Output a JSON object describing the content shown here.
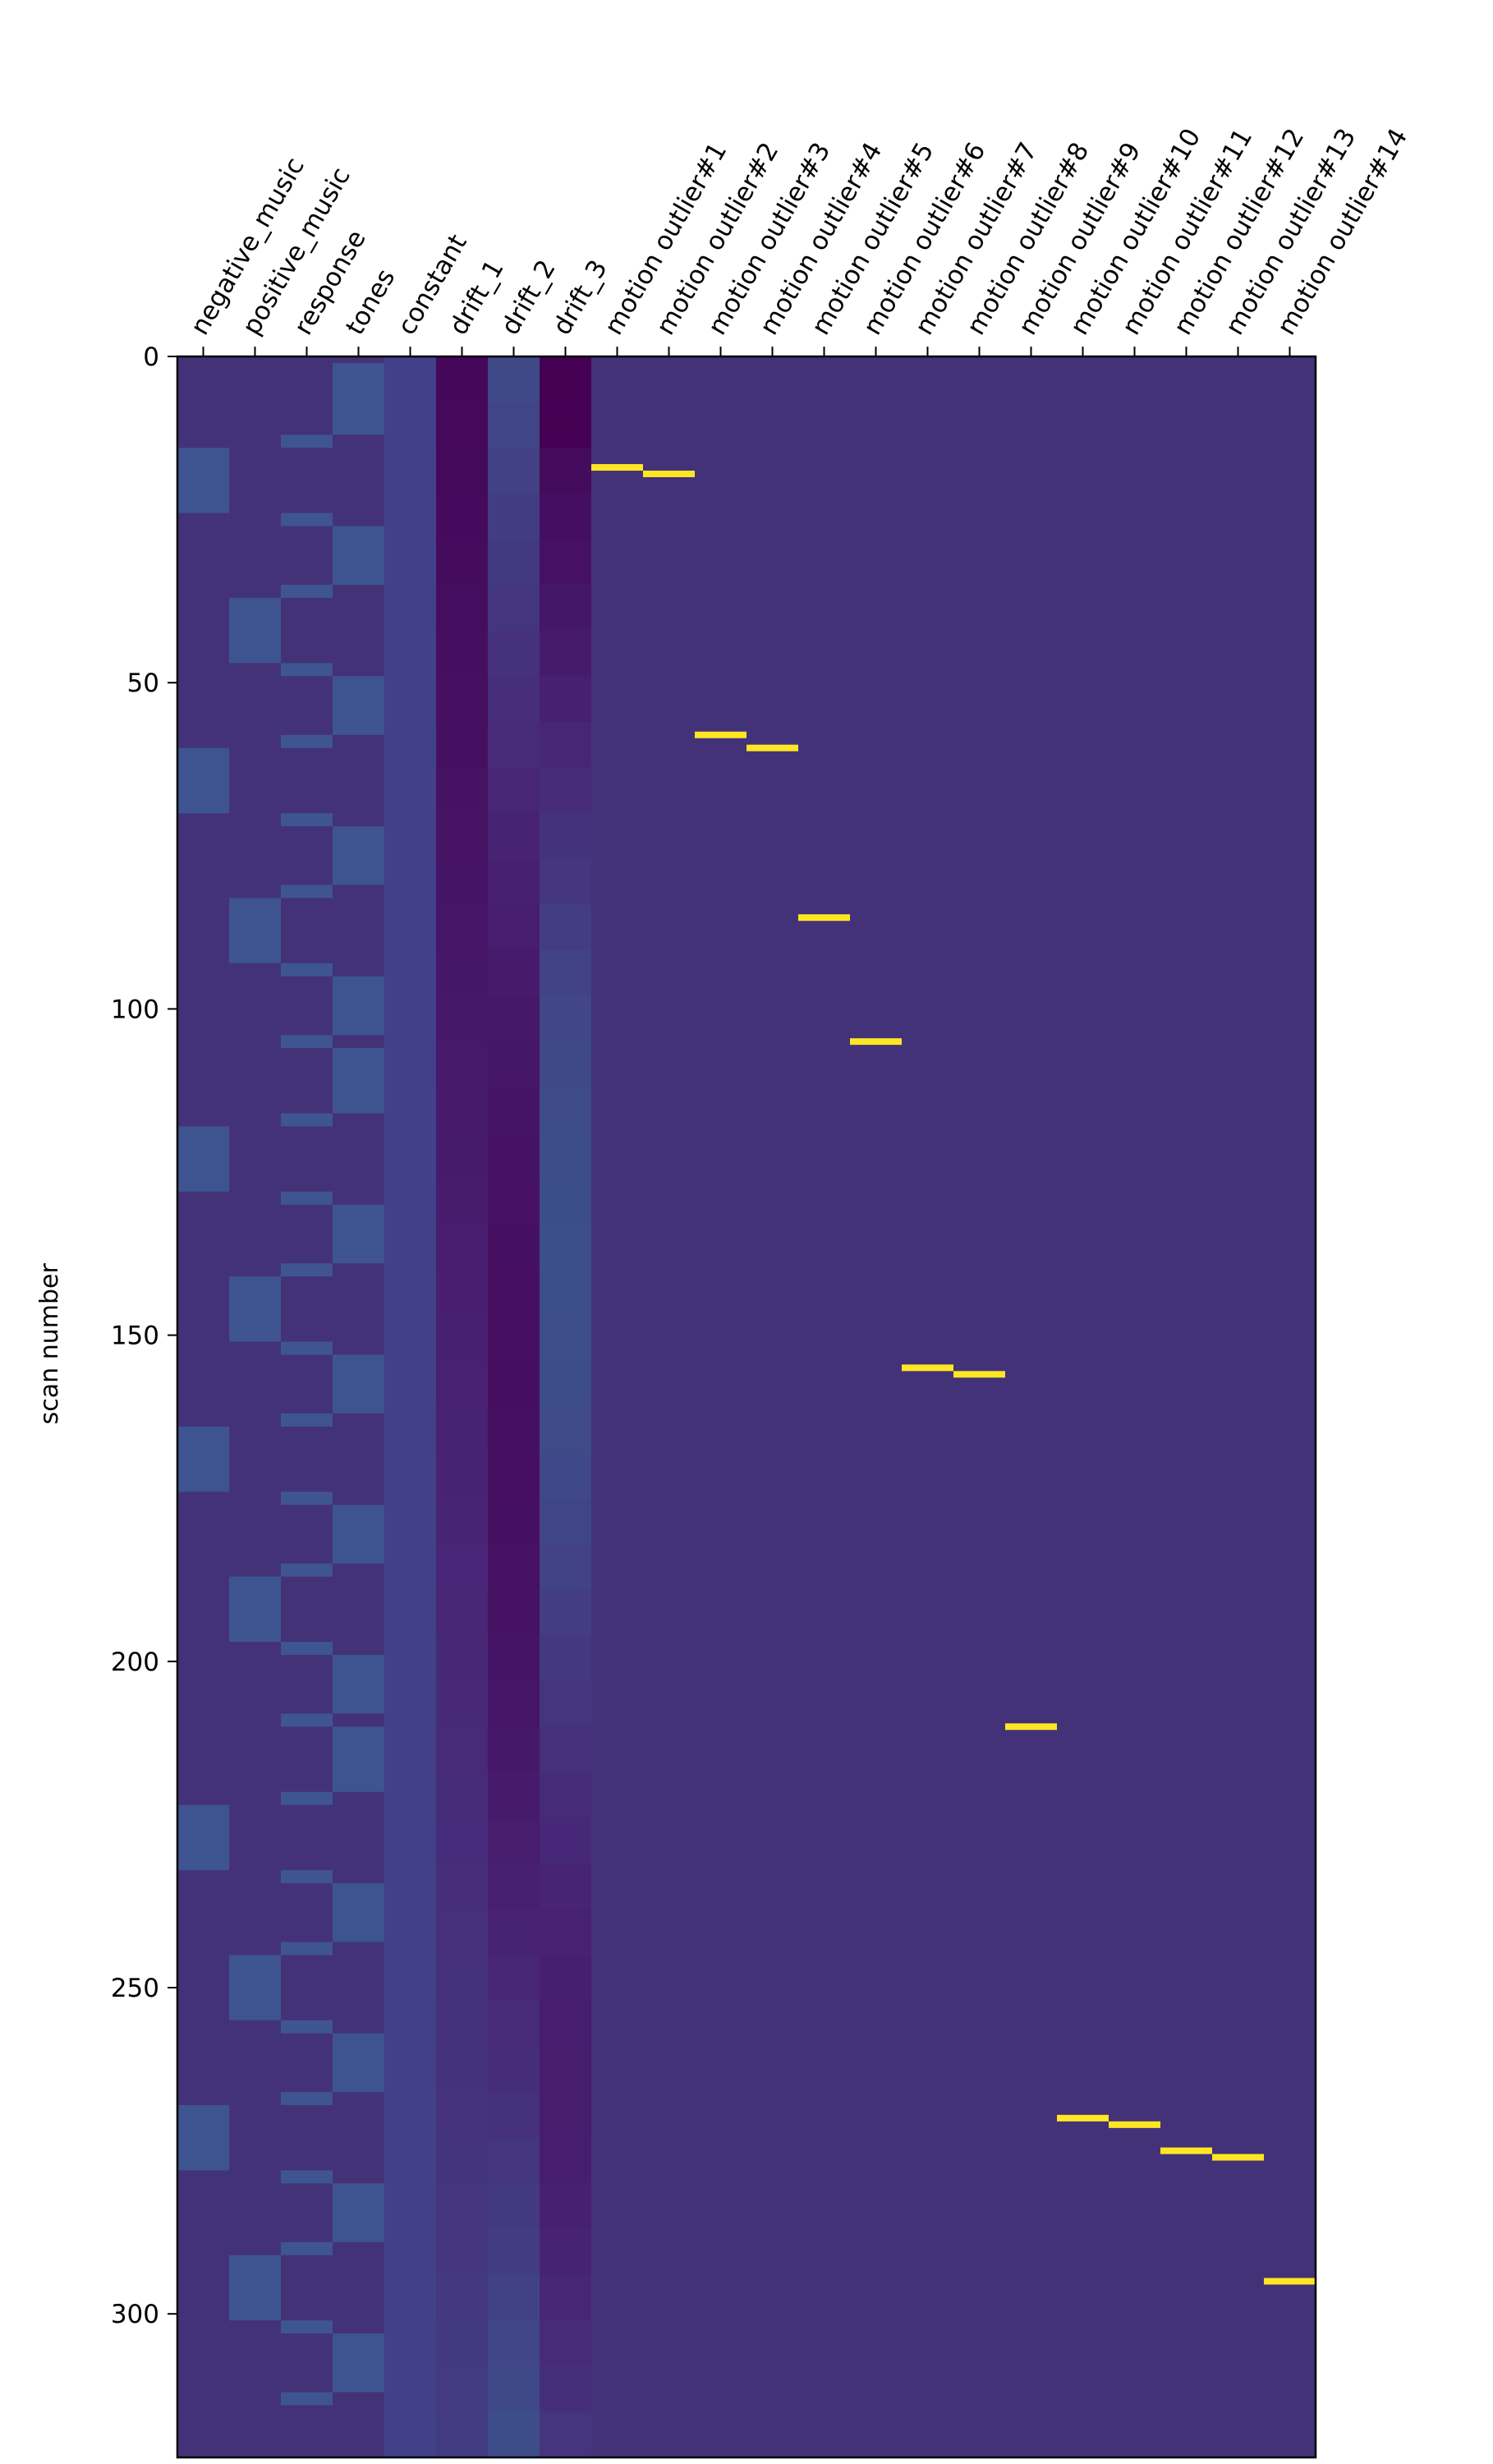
{
  "chart_data": {
    "type": "heatmap",
    "title": "",
    "ylabel": "scan number",
    "xlabel": "",
    "columns": [
      "negative_music",
      "positive_music",
      "response",
      "tones",
      "constant",
      "drift_1",
      "drift_2",
      "drift_3",
      "motion outlier#1",
      "motion outlier#2",
      "motion outlier#3",
      "motion outlier#4",
      "motion outlier#5",
      "motion outlier#6",
      "motion outlier#7",
      "motion outlier#8",
      "motion outlier#9",
      "motion outlier#10",
      "motion outlier#11",
      "motion outlier#12",
      "motion outlier#13",
      "motion outlier#14"
    ],
    "n_scans": 322,
    "yticks": [
      0,
      50,
      100,
      150,
      200,
      250,
      300
    ],
    "ylim": [
      0,
      322
    ],
    "colormap": "viridis",
    "colors": {
      "background": "#ffffff",
      "baseline": "#443278",
      "block_high": "#3d5490",
      "response_high": "#3e5592",
      "constant": "#424088",
      "outlier_spike": "#fde725",
      "axis": "#000000"
    },
    "blocks": {
      "negative_music": [
        [
          14,
          24
        ],
        [
          60,
          70
        ],
        [
          118,
          128
        ],
        [
          164,
          174
        ],
        [
          222,
          232
        ],
        [
          268,
          278
        ]
      ],
      "positive_music": [
        [
          37,
          47
        ],
        [
          83,
          93
        ],
        [
          141,
          151
        ],
        [
          187,
          197
        ],
        [
          245,
          255
        ],
        [
          291,
          301
        ]
      ],
      "response": [
        [
          12,
          14
        ],
        [
          24,
          26
        ],
        [
          35,
          37
        ],
        [
          47,
          49
        ],
        [
          58,
          60
        ],
        [
          70,
          72
        ],
        [
          81,
          83
        ],
        [
          93,
          95
        ],
        [
          104,
          106
        ],
        [
          116,
          118
        ],
        [
          128,
          130
        ],
        [
          139,
          141
        ],
        [
          151,
          153
        ],
        [
          162,
          164
        ],
        [
          174,
          176
        ],
        [
          185,
          187
        ],
        [
          197,
          199
        ],
        [
          208,
          210
        ],
        [
          220,
          222
        ],
        [
          232,
          234
        ],
        [
          243,
          245
        ],
        [
          255,
          257
        ],
        [
          266,
          268
        ],
        [
          278,
          280
        ],
        [
          289,
          291
        ],
        [
          301,
          303
        ],
        [
          312,
          314
        ]
      ],
      "tones": [
        [
          1,
          12
        ],
        [
          26,
          35
        ],
        [
          49,
          58
        ],
        [
          72,
          81
        ],
        [
          95,
          104
        ],
        [
          106,
          116
        ],
        [
          130,
          139
        ],
        [
          153,
          162
        ],
        [
          176,
          185
        ],
        [
          199,
          208
        ],
        [
          210,
          220
        ],
        [
          234,
          243
        ],
        [
          257,
          266
        ],
        [
          280,
          289
        ],
        [
          303,
          312
        ]
      ]
    },
    "drifts": {
      "drift_1": {
        "start": 0.06,
        "end": 0.12
      },
      "drift_2": {
        "start": 0.25,
        "end": 0.28
      },
      "drift_3": {
        "start": 0.29,
        "end": 0.32
      }
    },
    "outliers": [
      17,
      18,
      58,
      60,
      86,
      105,
      155,
      156,
      210,
      270,
      271,
      275,
      276,
      295
    ]
  }
}
